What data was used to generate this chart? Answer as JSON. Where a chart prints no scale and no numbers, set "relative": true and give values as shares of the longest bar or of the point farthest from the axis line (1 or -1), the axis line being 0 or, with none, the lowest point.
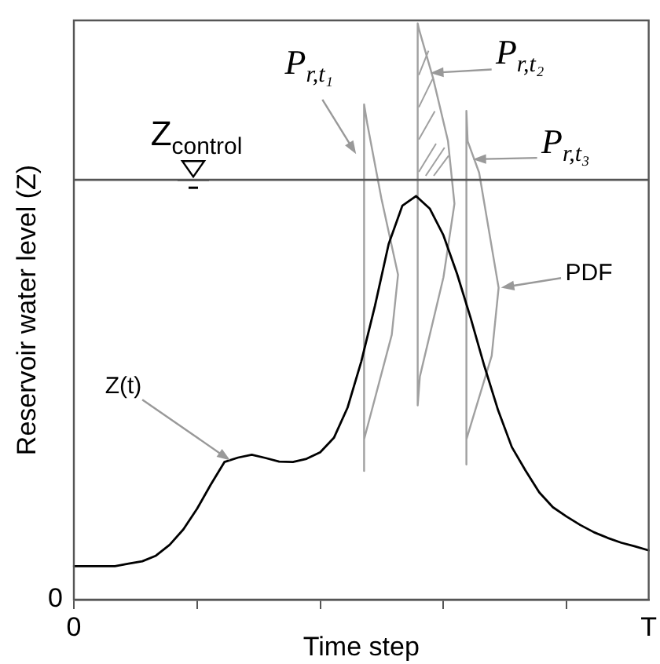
{
  "chart_data": {
    "type": "line",
    "relative": true,
    "xlabel": "Time step",
    "ylabel": "Reservoir water level (Z)",
    "categories": [
      "0",
      null,
      null,
      null,
      null,
      null,
      null,
      null,
      null,
      null,
      null,
      null,
      null,
      null,
      null,
      null,
      null,
      null,
      null,
      null,
      null,
      null,
      null,
      null,
      null,
      null,
      null,
      null,
      null,
      null,
      null,
      null,
      null,
      null,
      null,
      null,
      null,
      null,
      null,
      null,
      null,
      null,
      "T"
    ],
    "series": [
      {
        "color": "#000000",
        "values": [
          0.083,
          0.083,
          0.083,
          0.083,
          0.089,
          0.095,
          0.109,
          0.136,
          0.174,
          0.225,
          0.285,
          0.341,
          0.352,
          0.359,
          0.351,
          0.342,
          0.341,
          0.349,
          0.365,
          0.401,
          0.476,
          0.59,
          0.728,
          0.881,
          0.976,
          1.0,
          0.969,
          0.903,
          0.807,
          0.697,
          0.578,
          0.469,
          0.378,
          0.32,
          0.266,
          0.229,
          0.206,
          0.185,
          0.167,
          0.153,
          0.141,
          0.132,
          0.122
        ]
      }
    ],
    "ref_lines": [
      {
        "axis": "y",
        "value": 1.04,
        "label": "Z$_{control}$",
        "color": "#555555"
      }
    ],
    "annotations": [
      "0",
      "Z(t)",
      "P$_{r,t₁}$",
      "P$_{r,t₂}$",
      "P$_{r,t₃}$",
      "PDF"
    ],
    "legend": false,
    "marker": "none",
    "line_style": "solid"
  }
}
